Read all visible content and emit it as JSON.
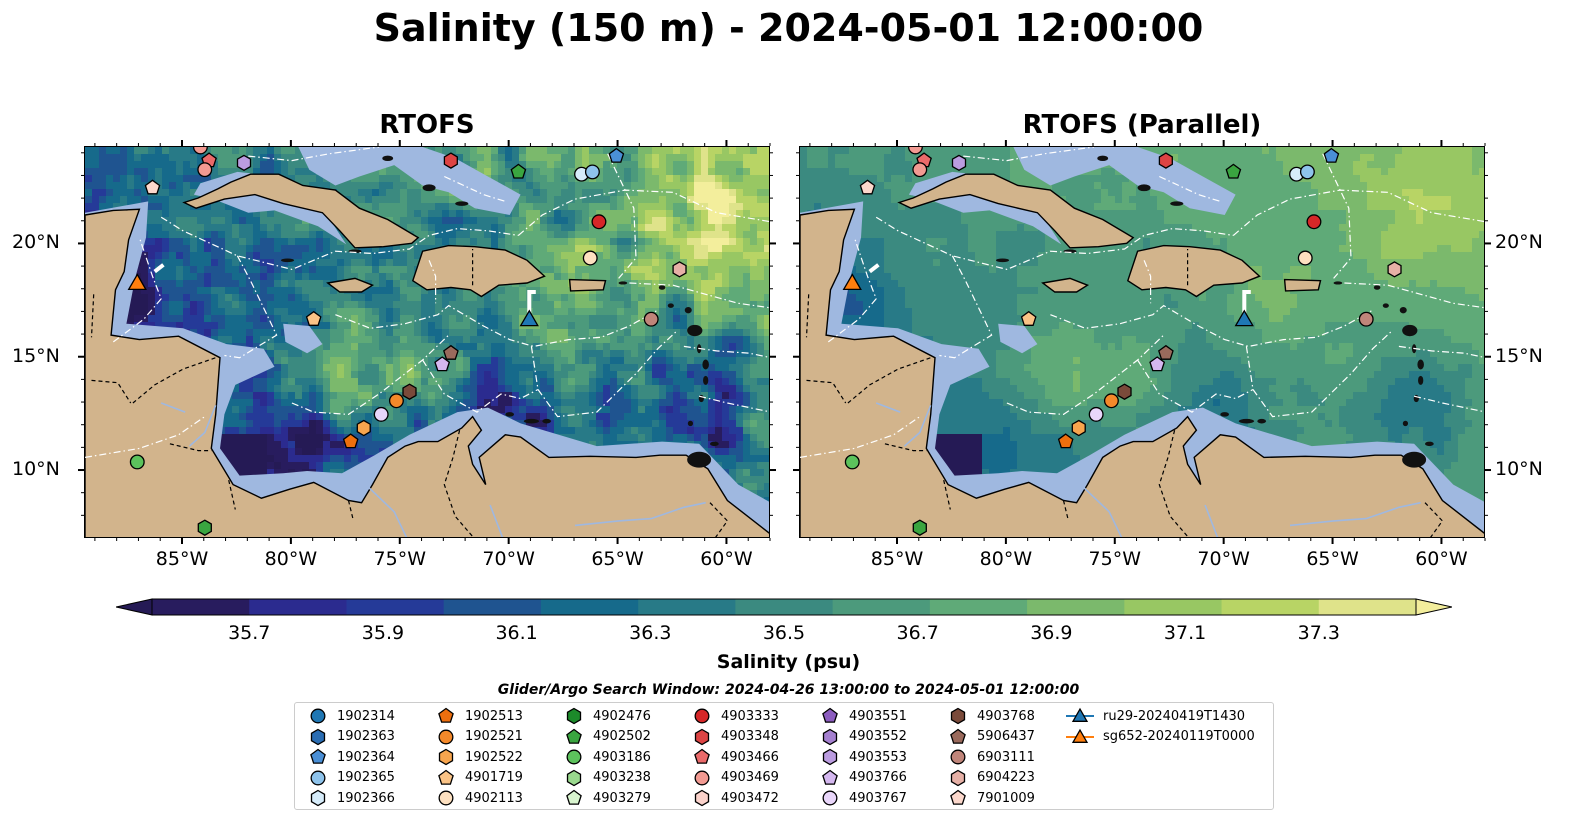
{
  "title": "Salinity (150 m) - 2024-05-01 12:00:00",
  "panels": [
    {
      "title": "RTOFS",
      "variant": "rtofs"
    },
    {
      "title": "RTOFS (Parallel)",
      "variant": "parallel"
    }
  ],
  "axes": {
    "lon_ticks": [
      "85°W",
      "80°W",
      "75°W",
      "70°W",
      "65°W",
      "60°W"
    ],
    "lat_ticks": [
      "20°N",
      "15°N",
      "10°N"
    ]
  },
  "colorbar": {
    "label": "Salinity (psu)",
    "ticks": [
      "35.7",
      "35.9",
      "36.1",
      "36.3",
      "36.5",
      "36.7",
      "36.9",
      "37.1",
      "37.3"
    ],
    "colors": [
      "#281c5e",
      "#2b2b8f",
      "#253a98",
      "#1f5490",
      "#166a8b",
      "#287a87",
      "#3b8a80",
      "#4c9a7c",
      "#5faa78",
      "#7bb96c",
      "#98c763",
      "#b8d465",
      "#dfe38a"
    ],
    "extend": "both"
  },
  "search_window": "Glider/Argo Search Window: 2024-04-26 13:00:00 to 2024-05-01 12:00:00",
  "legend": [
    {
      "label": "1902314",
      "marker": "circle",
      "color": "#1f77b4"
    },
    {
      "label": "1902363",
      "marker": "hexagon",
      "color": "#2a6db3"
    },
    {
      "label": "1902364",
      "marker": "pentagon",
      "color": "#4a8fd6"
    },
    {
      "label": "1902365",
      "marker": "circle",
      "color": "#8ec3eb"
    },
    {
      "label": "1902366",
      "marker": "hexagon",
      "color": "#d6ecfa"
    },
    {
      "label": "1902513",
      "marker": "pentagon",
      "color": "#ee6f0e"
    },
    {
      "label": "1902521",
      "marker": "circle",
      "color": "#f4892a"
    },
    {
      "label": "1902522",
      "marker": "hexagon",
      "color": "#f7a54e"
    },
    {
      "label": "4901719",
      "marker": "pentagon",
      "color": "#fac386"
    },
    {
      "label": "4902113",
      "marker": "circle",
      "color": "#fde0c0"
    },
    {
      "label": "4902476",
      "marker": "hexagon",
      "color": "#1c8a2a"
    },
    {
      "label": "4902502",
      "marker": "pentagon",
      "color": "#3aa540"
    },
    {
      "label": "4903186",
      "marker": "circle",
      "color": "#5cc25c"
    },
    {
      "label": "4903238",
      "marker": "hexagon",
      "color": "#9ad98e"
    },
    {
      "label": "4903279",
      "marker": "pentagon",
      "color": "#d9f5cf"
    },
    {
      "label": "4903333",
      "marker": "circle",
      "color": "#d62728"
    },
    {
      "label": "4903348",
      "marker": "hexagon",
      "color": "#dd4444"
    },
    {
      "label": "4903466",
      "marker": "pentagon",
      "color": "#ea6a6a"
    },
    {
      "label": "4903469",
      "marker": "circle",
      "color": "#f29a92"
    },
    {
      "label": "4903472",
      "marker": "hexagon",
      "color": "#fad2cb"
    },
    {
      "label": "4903551",
      "marker": "pentagon",
      "color": "#8c5cbf"
    },
    {
      "label": "4903552",
      "marker": "hexagon",
      "color": "#a580d0"
    },
    {
      "label": "4903553",
      "marker": "hexagon",
      "color": "#bb9ce0"
    },
    {
      "label": "4903766",
      "marker": "pentagon",
      "color": "#d5b8f0"
    },
    {
      "label": "4903767",
      "marker": "circle",
      "color": "#e9d6fa"
    },
    {
      "label": "4903768",
      "marker": "hexagon",
      "color": "#7a4a3a"
    },
    {
      "label": "5906437",
      "marker": "pentagon",
      "color": "#9a6a5c"
    },
    {
      "label": "6903111",
      "marker": "circle",
      "color": "#c0857a"
    },
    {
      "label": "6904223",
      "marker": "hexagon",
      "color": "#e6b0a6"
    },
    {
      "label": "7901009",
      "marker": "pentagon",
      "color": "#fcd8cc"
    },
    {
      "label": "ru29-20240419T1430",
      "marker": "triangle-line",
      "color": "#1f77b4"
    },
    {
      "label": "sg652-20240119T0000",
      "marker": "triangle-line",
      "color": "#ff7f0e"
    }
  ],
  "map_markers": [
    {
      "lon": -84.2,
      "lat": 24.3,
      "marker": "circle",
      "color": "#f29a92"
    },
    {
      "lon": -83.8,
      "lat": 23.7,
      "marker": "pentagon",
      "color": "#ea6a6a"
    },
    {
      "lon": -84.0,
      "lat": 23.3,
      "marker": "circle",
      "color": "#f29a92"
    },
    {
      "lon": -82.2,
      "lat": 23.6,
      "marker": "hexagon",
      "color": "#bb9ce0"
    },
    {
      "lon": -86.4,
      "lat": 22.5,
      "marker": "pentagon",
      "color": "#fcd8cc"
    },
    {
      "lon": -72.7,
      "lat": 23.7,
      "marker": "hexagon",
      "color": "#dd4444"
    },
    {
      "lon": -69.6,
      "lat": 23.2,
      "marker": "pentagon",
      "color": "#3aa540"
    },
    {
      "lon": -66.7,
      "lat": 23.1,
      "marker": "circle",
      "color": "#d6ecfa"
    },
    {
      "lon": -66.2,
      "lat": 23.2,
      "marker": "circle",
      "color": "#8ec3eb"
    },
    {
      "lon": -65.1,
      "lat": 23.9,
      "marker": "pentagon",
      "color": "#4a8fd6"
    },
    {
      "lon": -65.9,
      "lat": 21.0,
      "marker": "circle",
      "color": "#d62728"
    },
    {
      "lon": -66.3,
      "lat": 19.4,
      "marker": "circle",
      "color": "#fde0c0"
    },
    {
      "lon": -62.2,
      "lat": 18.9,
      "marker": "hexagon",
      "color": "#e6b0a6"
    },
    {
      "lon": -63.5,
      "lat": 16.7,
      "marker": "circle",
      "color": "#c0857a"
    },
    {
      "lon": -79.0,
      "lat": 16.7,
      "marker": "pentagon",
      "color": "#fac386"
    },
    {
      "lon": -72.7,
      "lat": 15.2,
      "marker": "pentagon",
      "color": "#9a6a5c"
    },
    {
      "lon": -73.1,
      "lat": 14.7,
      "marker": "pentagon",
      "color": "#d5b8f0"
    },
    {
      "lon": -74.6,
      "lat": 13.5,
      "marker": "hexagon",
      "color": "#7a4a3a"
    },
    {
      "lon": -75.2,
      "lat": 13.1,
      "marker": "circle",
      "color": "#f4892a"
    },
    {
      "lon": -75.9,
      "lat": 12.5,
      "marker": "circle",
      "color": "#e9d6fa"
    },
    {
      "lon": -76.7,
      "lat": 11.9,
      "marker": "hexagon",
      "color": "#f7a54e"
    },
    {
      "lon": -77.3,
      "lat": 11.3,
      "marker": "pentagon",
      "color": "#ee6f0e"
    },
    {
      "lon": -87.1,
      "lat": 10.4,
      "marker": "circle",
      "color": "#5cc25c"
    },
    {
      "lon": -84.0,
      "lat": 7.5,
      "marker": "hexagon",
      "color": "#3aa540"
    },
    {
      "lon": -87.1,
      "lat": 18.3,
      "marker": "triangle",
      "color": "#ff7f0e"
    },
    {
      "lon": -69.1,
      "lat": 16.7,
      "marker": "triangle",
      "color": "#1f77b4"
    }
  ]
}
